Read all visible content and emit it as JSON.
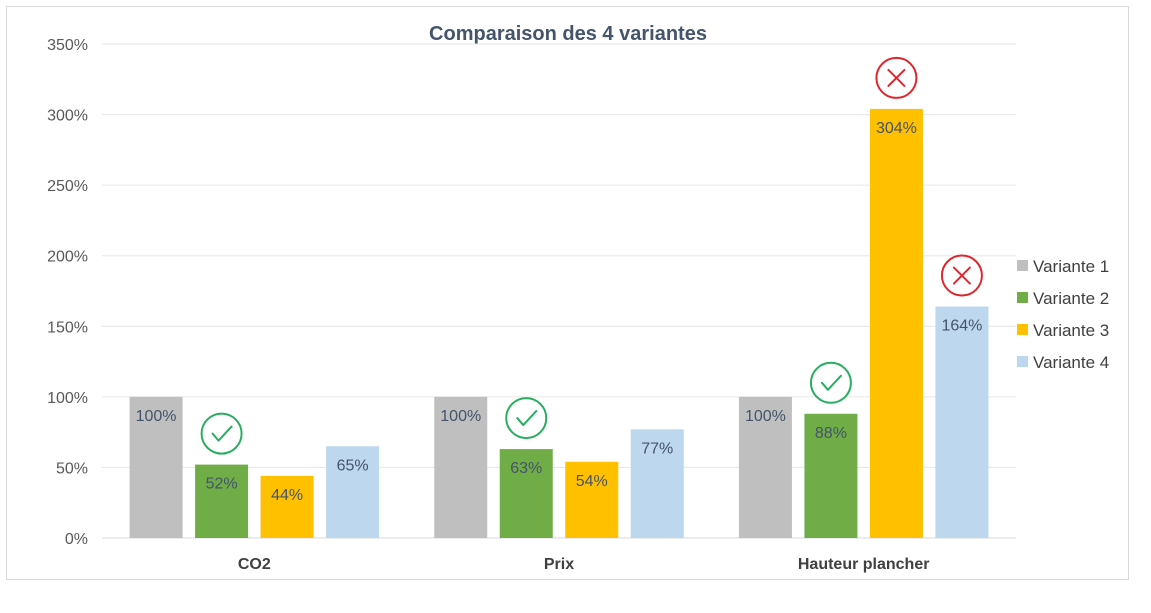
{
  "chart_data": {
    "type": "bar",
    "title": "Comparaison des 4 variantes",
    "xlabel": "",
    "ylabel": "",
    "categories": [
      "CO2",
      "Prix",
      "Hauteur plancher"
    ],
    "series": [
      {
        "name": "Variante 1",
        "color": "#bfbfbf",
        "values": [
          100,
          100,
          100
        ],
        "labels": [
          "100%",
          "100%",
          "100%"
        ]
      },
      {
        "name": "Variante 2",
        "color": "#70ad47",
        "values": [
          52,
          63,
          88
        ],
        "labels": [
          "52%",
          "63%",
          "88%"
        ]
      },
      {
        "name": "Variante 3",
        "color": "#ffc000",
        "values": [
          44,
          54,
          304
        ],
        "labels": [
          "44%",
          "54%",
          "304%"
        ]
      },
      {
        "name": "Variante 4",
        "color": "#bdd7ee",
        "values": [
          65,
          77,
          164
        ],
        "labels": [
          "65%",
          "77%",
          "164%"
        ]
      }
    ],
    "ylim": [
      0,
      350
    ],
    "yticks": [
      0,
      50,
      100,
      150,
      200,
      250,
      300,
      350
    ],
    "ytick_labels": [
      "0%",
      "50%",
      "100%",
      "150%",
      "200%",
      "250%",
      "300%",
      "350%"
    ],
    "grid": true,
    "legend_position": "right",
    "annotations": [
      {
        "type": "check-icon",
        "category": 0,
        "series": 1,
        "color": "#27ae60"
      },
      {
        "type": "check-icon",
        "category": 1,
        "series": 1,
        "color": "#27ae60"
      },
      {
        "type": "check-icon",
        "category": 2,
        "series": 1,
        "color": "#27ae60"
      },
      {
        "type": "cross-icon",
        "category": 2,
        "series": 2,
        "color": "#e0262d"
      },
      {
        "type": "cross-icon",
        "category": 2,
        "series": 3,
        "color": "#e0262d"
      }
    ]
  }
}
